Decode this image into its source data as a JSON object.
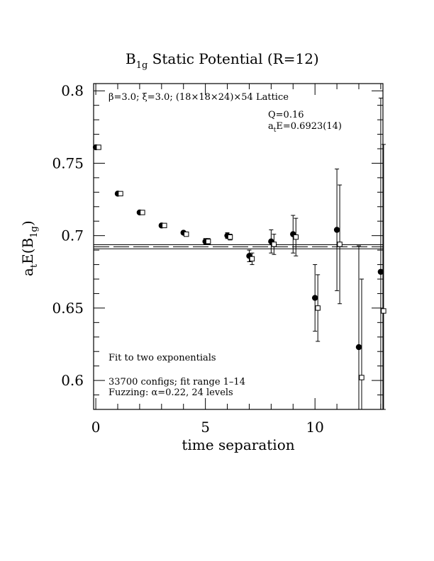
{
  "chart_data": {
    "type": "scatter",
    "title": "B",
    "title_sub": "1g",
    "title_rest": " Static Potential (R=12)",
    "xlabel": "time separation",
    "ylabel": "a",
    "ylabel_sub_t": "t",
    "ylabel_mid": "E(B",
    "ylabel_sub_1g": "1g",
    "ylabel_end": ")",
    "xlim": [
      -0.1,
      13.1
    ],
    "ylim": [
      0.58,
      0.805
    ],
    "x_ticks": [
      0,
      5,
      10
    ],
    "x_tick_labels": [
      "0",
      "5",
      "10"
    ],
    "y_ticks": [
      0.6,
      0.65,
      0.7,
      0.75,
      0.8
    ],
    "y_tick_labels": [
      "0.6",
      "0.65",
      "0.7",
      "0.75",
      "0.8"
    ],
    "annotations": {
      "lattice": "β=3.0; ξ=3.0; (18×18×24)×54 Lattice",
      "q": "Q=0.16",
      "energy_prefix": "a",
      "energy_sub": "t",
      "energy_rest": "E=0.6923(14)",
      "fit_note": "Fit to two exponentials",
      "configs": "33700 configs; fit range 1–14",
      "fuzzing": "Fuzzing: α=0.22, 24 levels"
    },
    "fit_band": {
      "center": 0.6923,
      "lower": 0.6909,
      "upper": 0.6937
    },
    "series": [
      {
        "marker": "filled-circle",
        "x": [
          0,
          1,
          2,
          3,
          4,
          5,
          6,
          7,
          8,
          9,
          10,
          11,
          12,
          13
        ],
        "y": [
          0.761,
          0.729,
          0.716,
          0.707,
          0.702,
          0.696,
          0.7,
          0.686,
          0.696,
          0.701,
          0.657,
          0.704,
          0.623,
          0.675
        ],
        "err": [
          0.001,
          0.001,
          0.001,
          0.001,
          0.001,
          0.002,
          0.002,
          0.004,
          0.008,
          0.013,
          0.023,
          0.042,
          0.07,
          0.12
        ]
      },
      {
        "marker": "open-square",
        "x": [
          0,
          1,
          2,
          3,
          4,
          5,
          6,
          7,
          8,
          9,
          10,
          11,
          12,
          13
        ],
        "y": [
          0.761,
          0.729,
          0.716,
          0.707,
          0.701,
          0.696,
          0.699,
          0.684,
          0.694,
          0.699,
          0.65,
          0.694,
          0.602,
          0.648
        ],
        "err": [
          0.001,
          0.001,
          0.001,
          0.001,
          0.001,
          0.002,
          0.002,
          0.004,
          0.007,
          0.013,
          0.023,
          0.041,
          0.068,
          0.115
        ]
      }
    ]
  }
}
